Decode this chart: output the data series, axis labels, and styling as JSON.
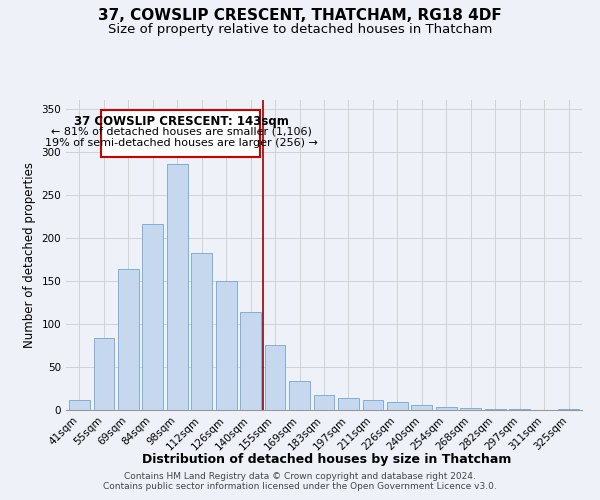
{
  "title": "37, COWSLIP CRESCENT, THATCHAM, RG18 4DF",
  "subtitle": "Size of property relative to detached houses in Thatcham",
  "xlabel": "Distribution of detached houses by size in Thatcham",
  "ylabel": "Number of detached properties",
  "bar_labels": [
    "41sqm",
    "55sqm",
    "69sqm",
    "84sqm",
    "98sqm",
    "112sqm",
    "126sqm",
    "140sqm",
    "155sqm",
    "169sqm",
    "183sqm",
    "197sqm",
    "211sqm",
    "226sqm",
    "240sqm",
    "254sqm",
    "268sqm",
    "282sqm",
    "297sqm",
    "311sqm",
    "325sqm"
  ],
  "bar_values": [
    12,
    84,
    164,
    216,
    286,
    182,
    150,
    114,
    75,
    34,
    18,
    14,
    12,
    9,
    6,
    4,
    2,
    1,
    1,
    0,
    1
  ],
  "bar_color": "#c5d8ee",
  "bar_edge_color": "#6fa8d4",
  "reference_line_x": 7.5,
  "reference_line_color": "#990000",
  "annotation_title": "37 COWSLIP CRESCENT: 143sqm",
  "annotation_line1": "← 81% of detached houses are smaller (1,106)",
  "annotation_line2": "19% of semi-detached houses are larger (256) →",
  "annotation_box_color": "#ffffff",
  "annotation_box_edge": "#cc0000",
  "ylim": [
    0,
    360
  ],
  "yticks": [
    0,
    50,
    100,
    150,
    200,
    250,
    300,
    350
  ],
  "footer_line1": "Contains HM Land Registry data © Crown copyright and database right 2024.",
  "footer_line2": "Contains public sector information licensed under the Open Government Licence v3.0.",
  "title_fontsize": 11,
  "subtitle_fontsize": 9.5,
  "xlabel_fontsize": 9,
  "ylabel_fontsize": 8.5,
  "tick_fontsize": 7.5,
  "footer_fontsize": 6.5,
  "annotation_title_fontsize": 8.5,
  "annotation_text_fontsize": 8,
  "background_color": "#eef2f8"
}
